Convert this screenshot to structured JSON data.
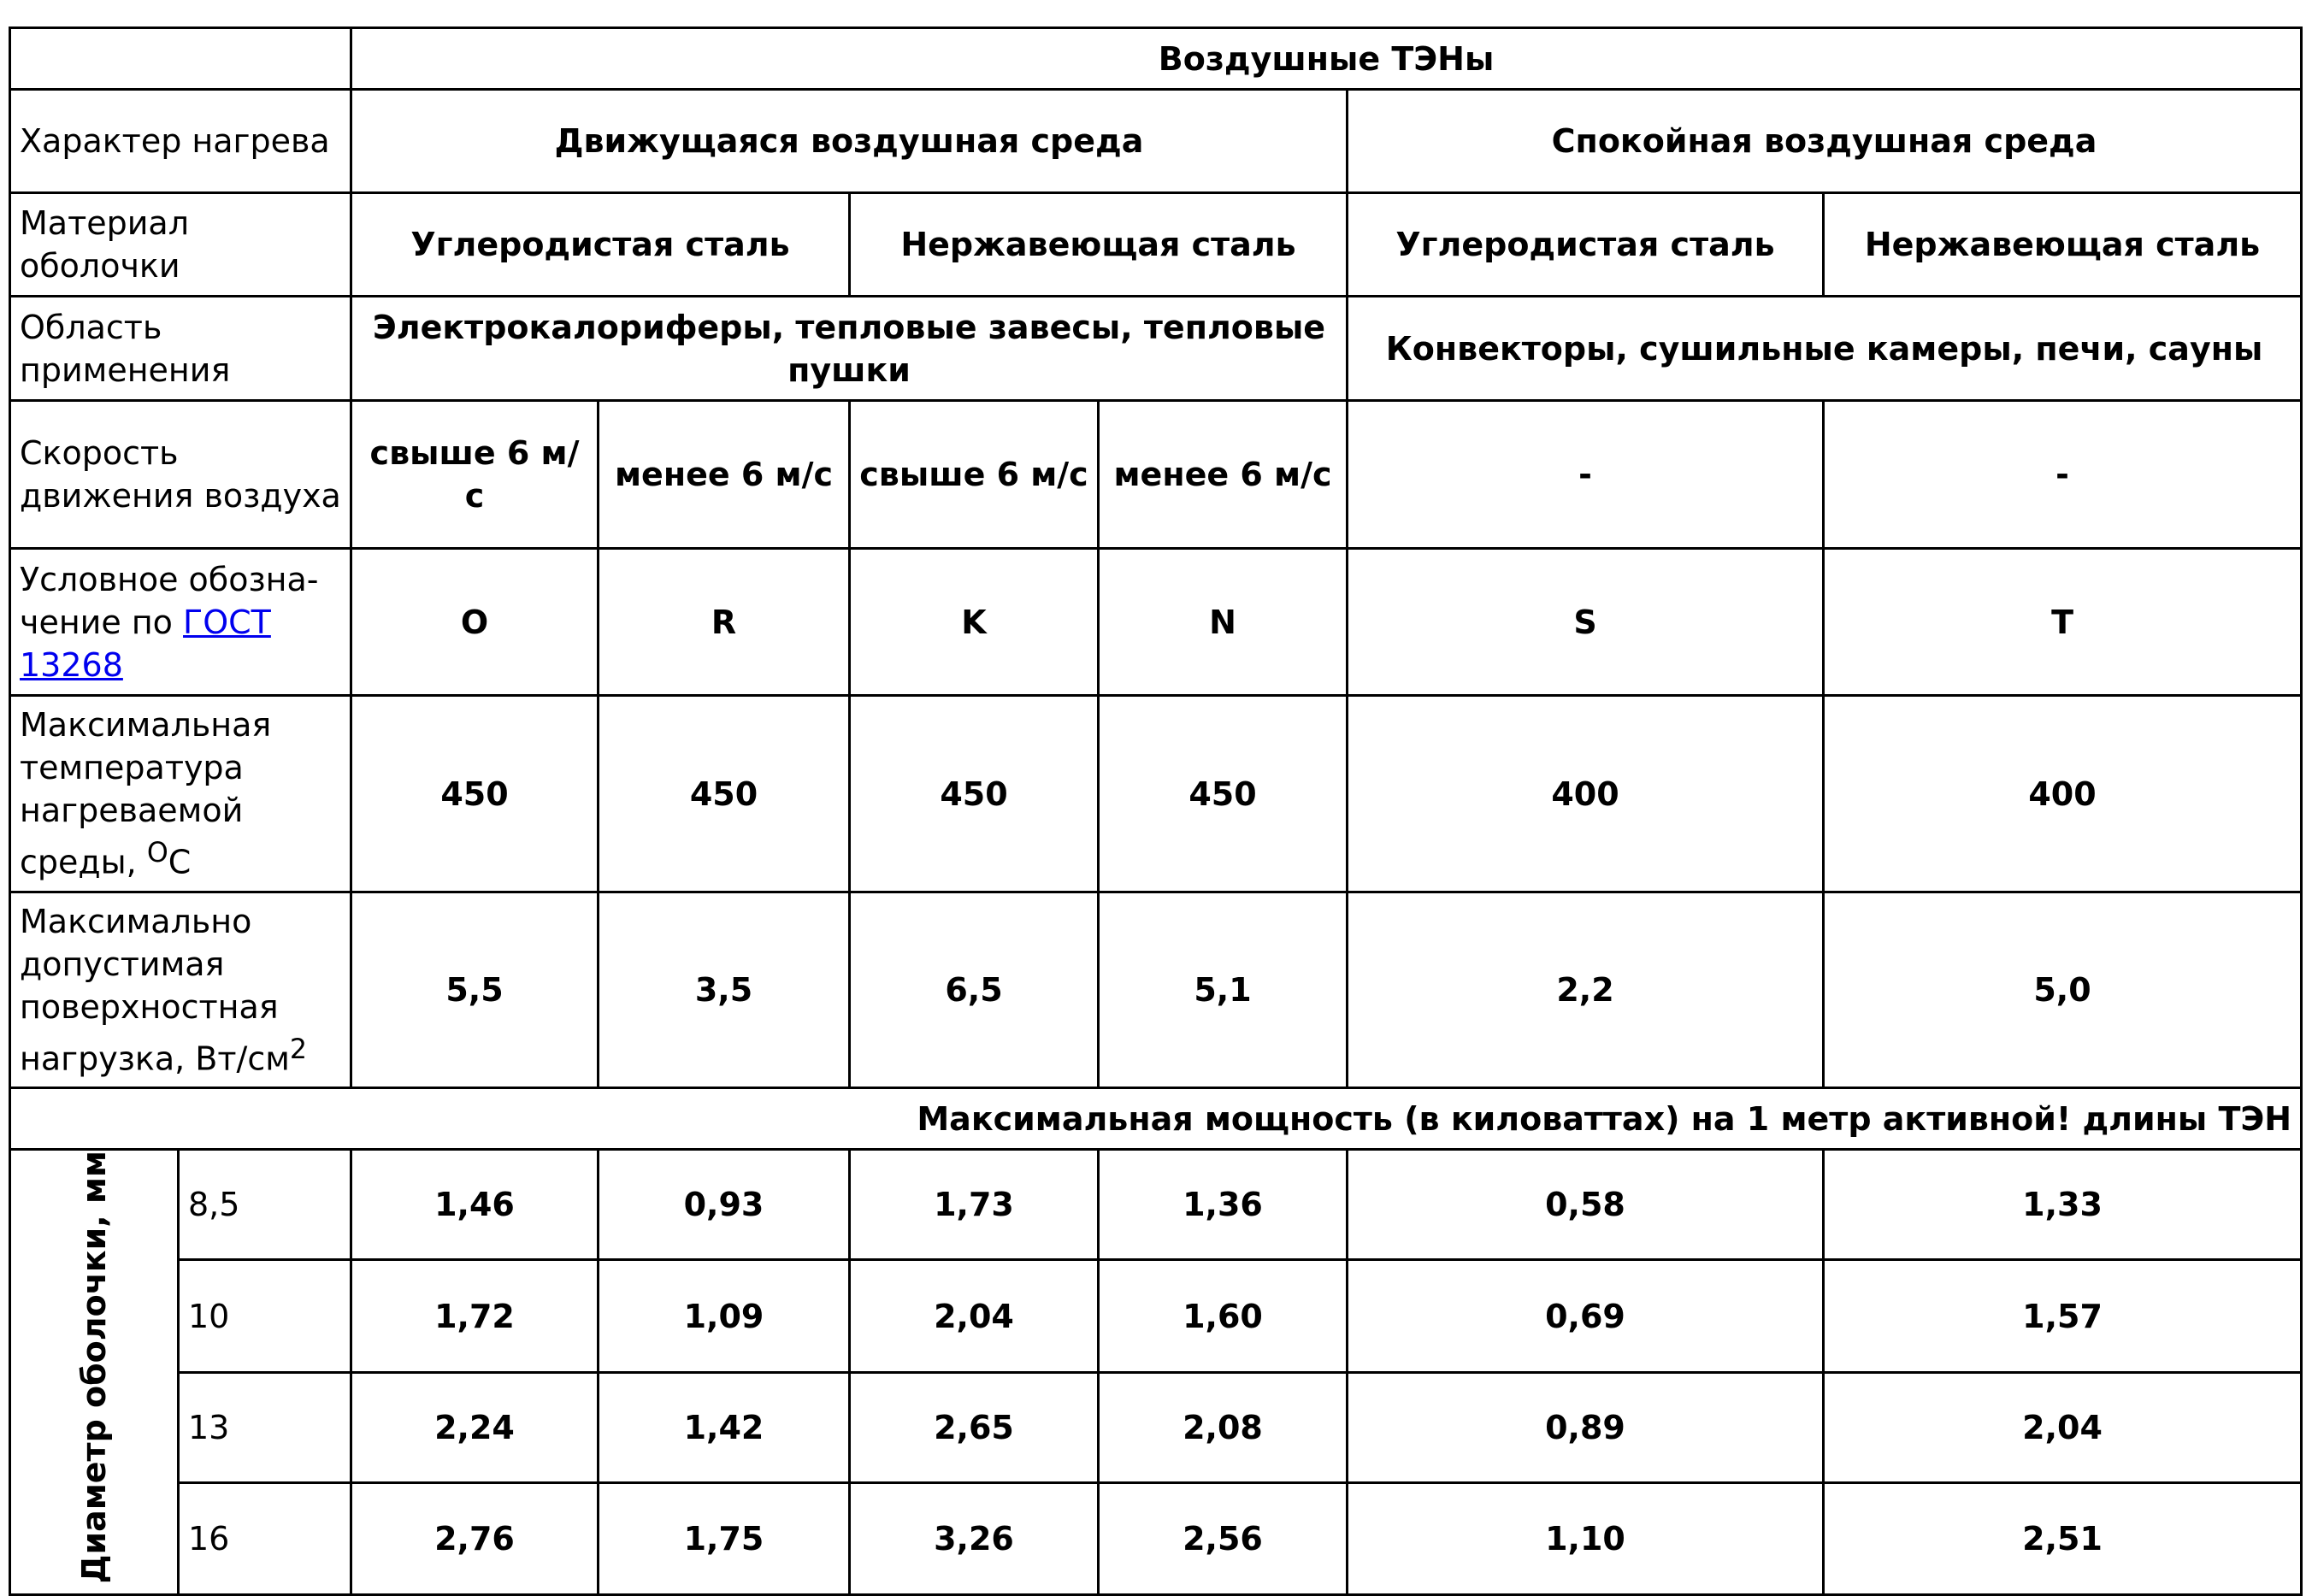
{
  "table": {
    "title": "Воздушные ТЭНы",
    "heating": {
      "label": "Характер нагрева",
      "values": [
        "Движущаяся воздушная среда",
        "Спокойная воздушная среда"
      ]
    },
    "material": {
      "label": "Материал оболочки",
      "values": [
        "Углеродистая сталь",
        "Нержавеющая сталь",
        "Углеродистая сталь",
        "Нержавеющая сталь"
      ]
    },
    "application": {
      "label": "Область применения",
      "values": [
        "Электрокалориферы, тепловые завесы, тепловые пушки",
        "Конвекторы, сушильные камеры, печи, сауны"
      ]
    },
    "air_speed": {
      "label": "Скорость движения воздуха",
      "values": [
        "свыше 6 м/с",
        "менее 6 м/с",
        "свыше 6 м/с",
        "менее 6 м/с",
        "-",
        "-"
      ]
    },
    "designation": {
      "label": "Условное обозна-чение по",
      "link": "ГОСТ 13268",
      "values": [
        "O",
        "R",
        "K",
        "N",
        "S",
        "T"
      ]
    },
    "max_temp": {
      "label": "Максимальная температура нагреваемой среды,",
      "unit_sup": "O",
      "unit": "C",
      "values": [
        "450",
        "450",
        "450",
        "450",
        "400",
        "400"
      ]
    },
    "max_load": {
      "label": "Максимально допустимая поверхностная нагрузка, Вт/см",
      "unit_sup": "2",
      "values": [
        "5,5",
        "3,5",
        "6,5",
        "5,1",
        "2,2",
        "5,0"
      ]
    },
    "power_title": "Максимальная мощность (в киловаттах) на 1 метр активной! длины ТЭН",
    "diameter_label": "Диаметр оболочки, мм",
    "power_rows": [
      {
        "diameter": "8,5",
        "values": [
          "1,46",
          "0,93",
          "1,73",
          "1,36",
          "0,58",
          "1,33"
        ]
      },
      {
        "diameter": "10",
        "values": [
          "1,72",
          "1,09",
          "2,04",
          "1,60",
          "0,69",
          "1,57"
        ]
      },
      {
        "diameter": "13",
        "values": [
          "2,24",
          "1,42",
          "2,65",
          "2,08",
          "0,89",
          "2,04"
        ]
      },
      {
        "diameter": "16",
        "values": [
          "2,76",
          "1,75",
          "3,26",
          "2,56",
          "1,10",
          "2,51"
        ]
      }
    ]
  }
}
